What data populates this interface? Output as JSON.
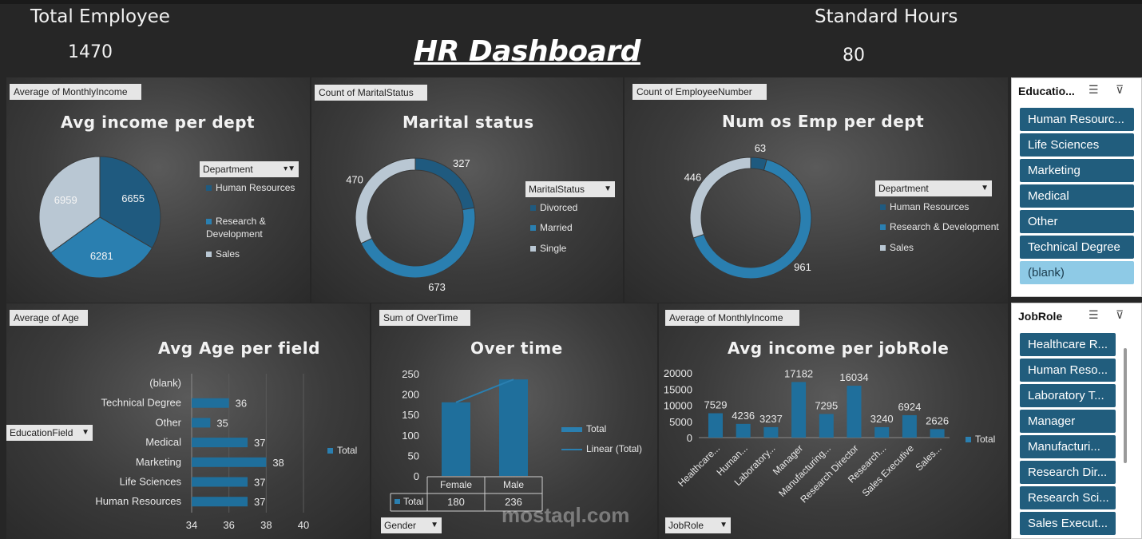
{
  "header": {
    "total_employee_label": "Total Employee",
    "total_employee_value": "1470",
    "title": "HR Dashboard",
    "standard_hours_label": "Standard Hours",
    "standard_hours_value": "80"
  },
  "charts": {
    "income_dept": {
      "field": "Average of MonthlyIncome",
      "title": "Avg income per dept",
      "legend_field": "Department",
      "legend": [
        "Human Resources",
        "Research & Development",
        "Sales"
      ]
    },
    "marital": {
      "field": "Count of MaritalStatus",
      "title": "Marital status",
      "legend_field": "MaritalStatus",
      "legend": [
        "Divorced",
        "Married",
        "Single"
      ]
    },
    "emp_dept": {
      "field": "Count of EmployeeNumber",
      "title": "Num os Emp per dept",
      "legend_field": "Department",
      "legend": [
        "Human Resources",
        "Research & Development",
        "Sales"
      ]
    },
    "age_field": {
      "field": "Average of Age",
      "title": "Avg Age per field",
      "axis_field": "EducationField",
      "legend": "Total"
    },
    "overtime": {
      "field": "Sum of OverTime",
      "title": "Over time",
      "axis_field": "Gender",
      "legend": [
        "Total",
        "Linear (Total)"
      ],
      "table_row_label": "Total"
    },
    "income_role": {
      "field": "Average of MonthlyIncome",
      "title": "Avg income per jobRole",
      "axis_field": "JobRole",
      "legend": "Total"
    }
  },
  "slicers": {
    "education": {
      "title": "Educatio...",
      "items": [
        "Human Resourc...",
        "Life Sciences",
        "Marketing",
        "Medical",
        "Other",
        "Technical Degree",
        "(blank)"
      ]
    },
    "jobrole": {
      "title": "JobRole",
      "items": [
        "Healthcare R...",
        "Human Reso...",
        "Laboratory T...",
        "Manager",
        "Manufacturi...",
        "Research Dir...",
        "Research Sci...",
        "Sales Execut..."
      ]
    }
  },
  "watermark": "mostaql.com",
  "chart_data": [
    {
      "type": "pie",
      "title": "Avg income per dept",
      "categories": [
        "Human Resources",
        "Research & Development",
        "Sales"
      ],
      "values": [
        6655,
        6281,
        6959
      ],
      "colors": [
        "#1f5a7f",
        "#2a7fb0",
        "#b9c7d3"
      ]
    },
    {
      "type": "pie",
      "title": "Marital status",
      "categories": [
        "Divorced",
        "Married",
        "Single"
      ],
      "values": [
        327,
        673,
        470
      ],
      "colors": [
        "#1f5a7f",
        "#2a7fb0",
        "#b9c7d3"
      ]
    },
    {
      "type": "pie",
      "title": "Num os Emp per dept",
      "categories": [
        "Human Resources",
        "Research & Development",
        "Sales"
      ],
      "values": [
        63,
        961,
        446
      ],
      "colors": [
        "#1f5a7f",
        "#2a7fb0",
        "#b9c7d3"
      ]
    },
    {
      "type": "bar",
      "title": "Avg Age per field",
      "categories": [
        "Human Resources",
        "Life Sciences",
        "Marketing",
        "Medical",
        "Other",
        "Technical Degree",
        "(blank)"
      ],
      "values": [
        37,
        37,
        38,
        37,
        35,
        36,
        null
      ],
      "xlim": [
        34,
        40
      ],
      "xticks": [
        34,
        36,
        38,
        40
      ]
    },
    {
      "type": "bar",
      "title": "Over time",
      "categories": [
        "Female",
        "Male"
      ],
      "values": [
        180,
        236
      ],
      "ylim": [
        0,
        250
      ],
      "yticks": [
        0,
        50,
        100,
        150,
        200,
        250
      ]
    },
    {
      "type": "bar",
      "title": "Avg income per jobRole",
      "categories": [
        "Healthcare...",
        "Human...",
        "Laboratory...",
        "Manager",
        "Manufacturing...",
        "Research Director",
        "Research...",
        "Sales Executive",
        "Sales..."
      ],
      "values": [
        7529,
        4236,
        3237,
        17182,
        7295,
        16034,
        3240,
        6924,
        2626
      ],
      "ylim": [
        0,
        20000
      ],
      "yticks": [
        0,
        5000,
        10000,
        15000,
        20000
      ]
    }
  ]
}
